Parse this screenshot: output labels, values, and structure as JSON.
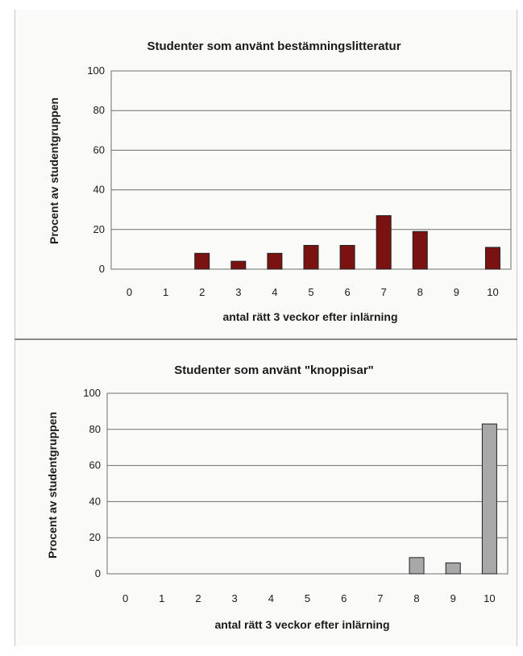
{
  "colors": {
    "bar_top": "#7a1212",
    "bar_bottom": "#a8a8a8",
    "grid": "#6e6e6e",
    "frame": "#6e6e6e"
  },
  "chart_data": [
    {
      "type": "bar",
      "title": "Studenter som använt bestämningslitteratur",
      "xlabel": "antal rätt 3 veckor efter inlärning",
      "ylabel": "Procent av studentgruppen",
      "categories": [
        "0",
        "1",
        "2",
        "3",
        "4",
        "5",
        "6",
        "7",
        "8",
        "9",
        "10"
      ],
      "values": [
        0,
        0,
        8,
        4,
        8,
        12,
        12,
        27,
        19,
        0,
        11
      ],
      "yticks": [
        "0",
        "20",
        "40",
        "60",
        "80",
        "100"
      ],
      "ylim": [
        0,
        100
      ],
      "grid": true,
      "bar_color": "#7a1212"
    },
    {
      "type": "bar",
      "title": "Studenter som använt \"knoppisar\"",
      "xlabel": "antal rätt 3 veckor efter inlärning",
      "ylabel": "Procent av studentgruppen",
      "categories": [
        "0",
        "1",
        "2",
        "3",
        "4",
        "5",
        "6",
        "7",
        "8",
        "9",
        "10"
      ],
      "values": [
        0,
        0,
        0,
        0,
        0,
        0,
        0,
        0,
        9,
        6,
        83
      ],
      "yticks": [
        "0",
        "20",
        "40",
        "60",
        "80",
        "100"
      ],
      "ylim": [
        0,
        100
      ],
      "grid": true,
      "bar_color": "#a8a8a8"
    }
  ]
}
